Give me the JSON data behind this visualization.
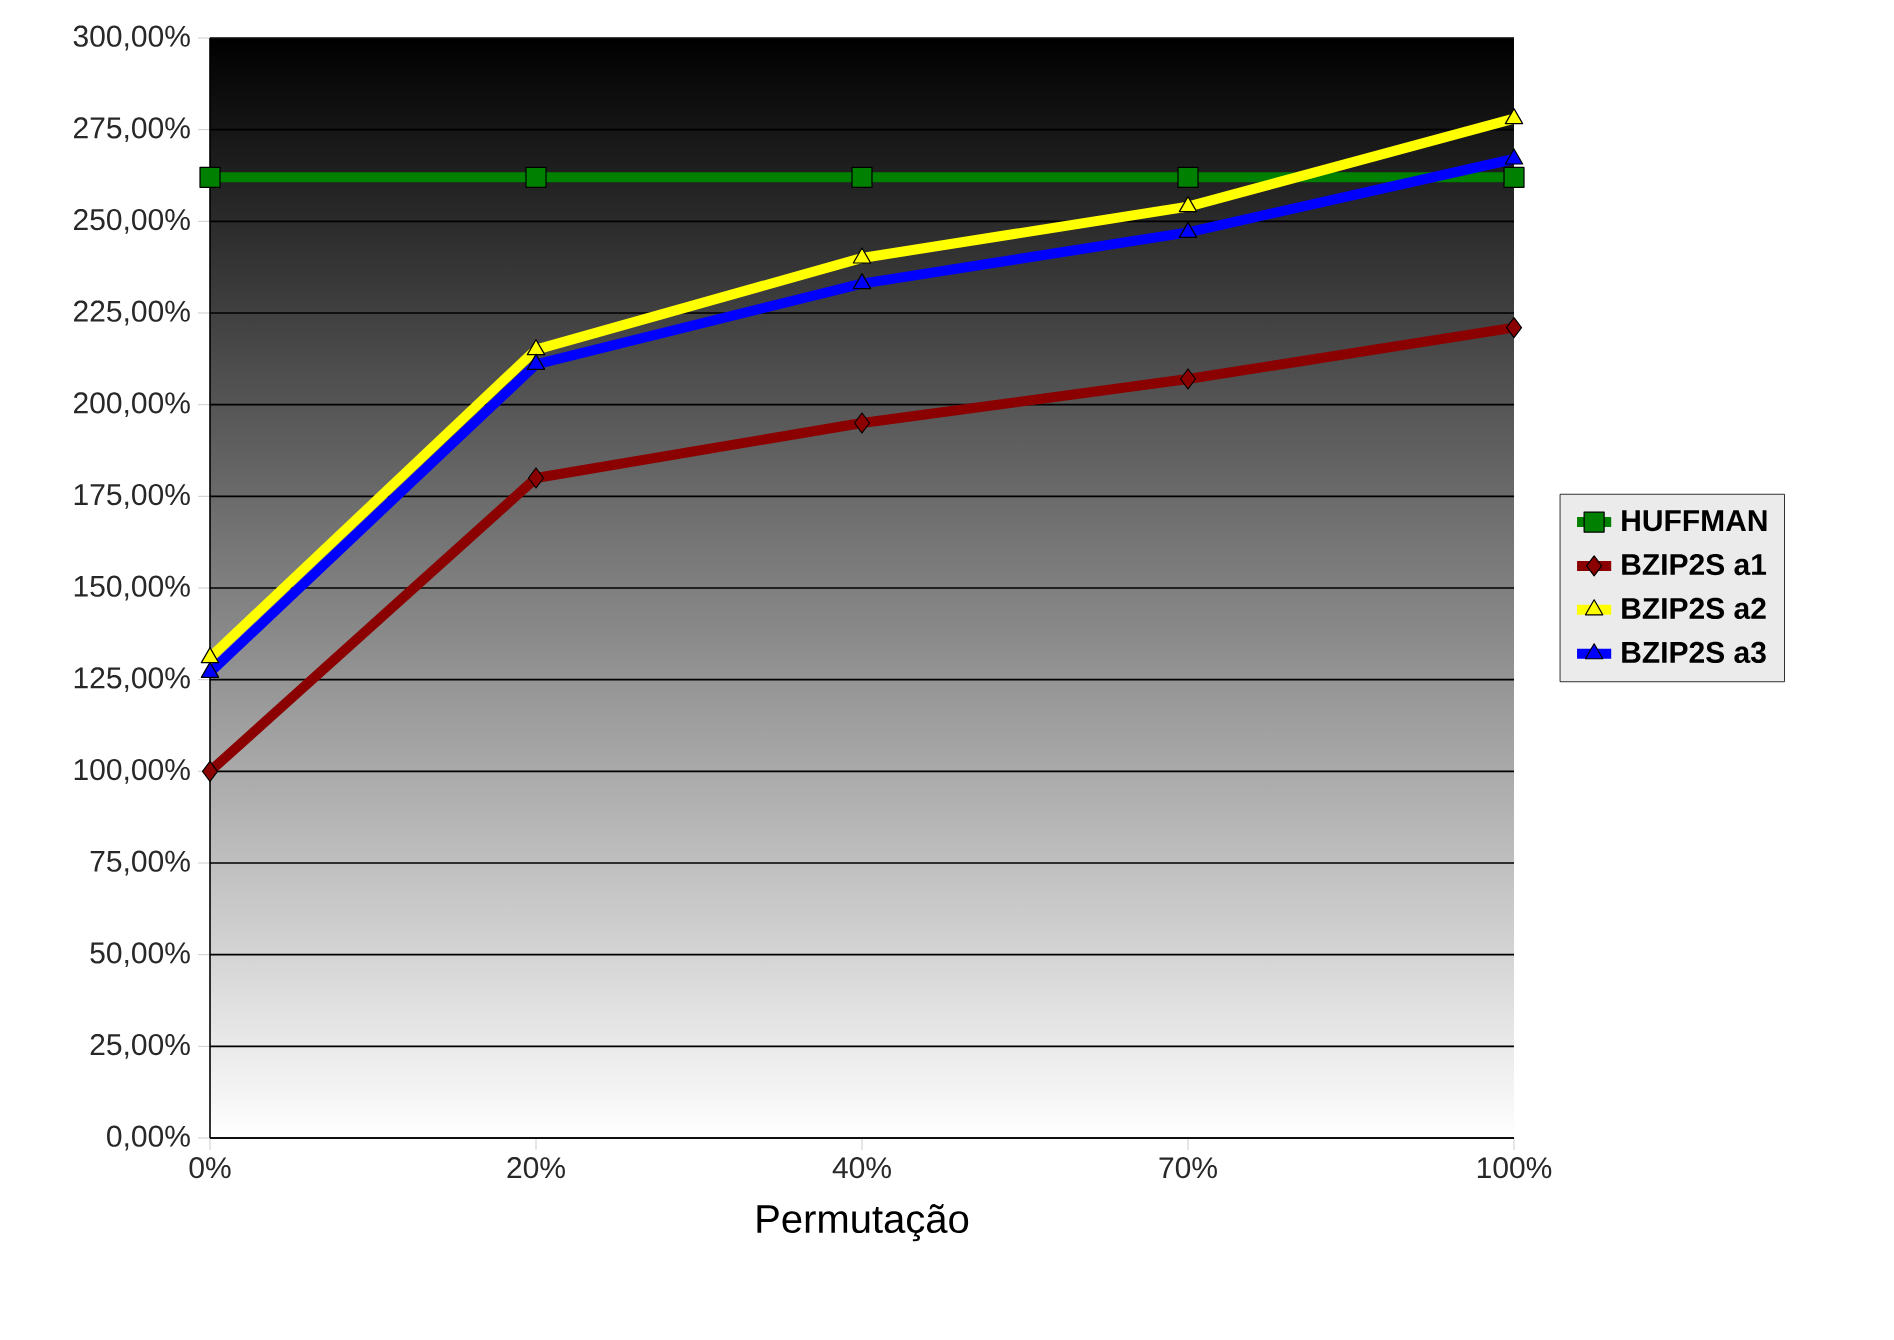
{
  "chart_data": {
    "type": "line",
    "xlabel": "Permutação",
    "categories": [
      "0%",
      "20%",
      "40%",
      "70%",
      "100%"
    ],
    "series": [
      {
        "name": "HUFFMAN",
        "color": "#008000",
        "marker": "square",
        "values": [
          262,
          262,
          262,
          262,
          262
        ]
      },
      {
        "name": "BZIP2S a1",
        "color": "#8b0000",
        "marker": "diamond",
        "values": [
          100,
          180,
          195,
          207,
          221
        ]
      },
      {
        "name": "BZIP2S a2",
        "color": "#ffff00",
        "marker": "triangle",
        "values": [
          131,
          215,
          240,
          254,
          278
        ]
      },
      {
        "name": "BZIP2S a3",
        "color": "#0000ff",
        "marker": "triangle",
        "values": [
          127,
          211,
          233,
          247,
          267
        ]
      }
    ],
    "ylim": [
      0,
      300
    ],
    "yticks": [
      {
        "value": 0,
        "label": "0,00%"
      },
      {
        "value": 25,
        "label": "25,00%"
      },
      {
        "value": 50,
        "label": "50,00%"
      },
      {
        "value": 75,
        "label": "75,00%"
      },
      {
        "value": 100,
        "label": "100,00%"
      },
      {
        "value": 125,
        "label": "125,00%"
      },
      {
        "value": 150,
        "label": "150,00%"
      },
      {
        "value": 175,
        "label": "175,00%"
      },
      {
        "value": 200,
        "label": "200,00%"
      },
      {
        "value": 225,
        "label": "225,00%"
      },
      {
        "value": 250,
        "label": "250,00%"
      },
      {
        "value": 275,
        "label": "275,00%"
      },
      {
        "value": 300,
        "label": "300,00%"
      }
    ],
    "grid": "y",
    "legend": "right",
    "line_style": "solid"
  }
}
